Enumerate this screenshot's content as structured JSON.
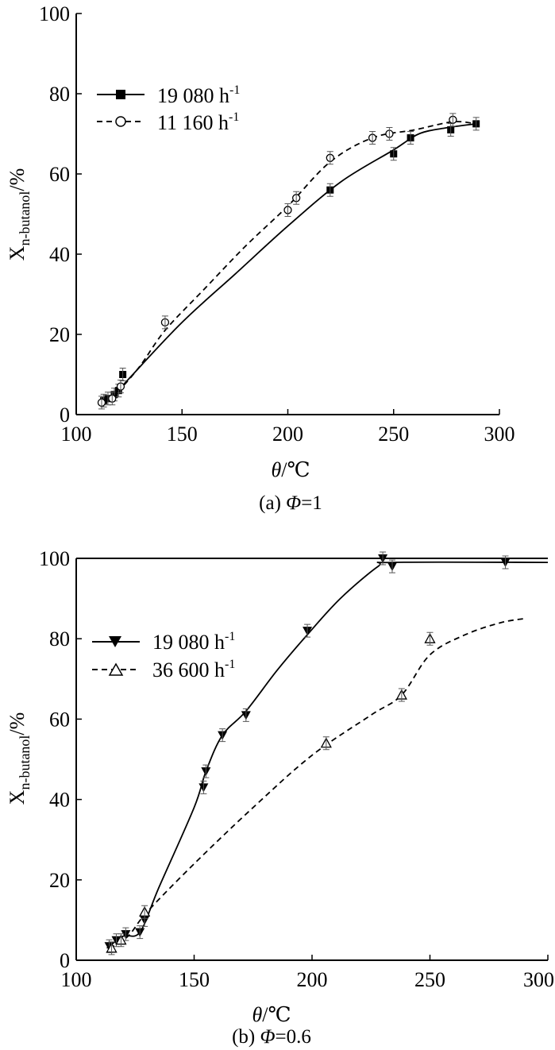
{
  "chart_data": [
    {
      "type": "line",
      "caption": "(a) Φ=1",
      "caption_prefix": "(a) ",
      "caption_symbol": "Φ",
      "caption_value": "=1",
      "xlabel": "θ/℃",
      "xlabel_symbol": "θ",
      "xlabel_unit": "/℃",
      "ylabel": "Xn-butanol/%",
      "ylabel_main": "X",
      "ylabel_sub": "n-butanol",
      "ylabel_unit": "/%",
      "xlim": [
        100,
        300
      ],
      "ylim": [
        0,
        100
      ],
      "xticks": [
        "100",
        "150",
        "200",
        "250",
        "300"
      ],
      "yticks": [
        "0",
        "20",
        "40",
        "60",
        "80",
        "100"
      ],
      "grid": false,
      "legend_position": "top-left",
      "series": [
        {
          "name": "19 080 h-1",
          "name_main": "19 080 h",
          "name_sup": "-1",
          "marker": "filled-square",
          "line": "solid",
          "points": [
            {
              "x": 113,
              "y": 3.5
            },
            {
              "x": 115,
              "y": 4
            },
            {
              "x": 118,
              "y": 5
            },
            {
              "x": 120,
              "y": 6
            },
            {
              "x": 122,
              "y": 10
            },
            {
              "x": 220,
              "y": 56
            },
            {
              "x": 250,
              "y": 65
            },
            {
              "x": 258,
              "y": 69
            },
            {
              "x": 277,
              "y": 71
            },
            {
              "x": 289,
              "y": 72.5
            }
          ],
          "curve": [
            {
              "x": 112,
              "y": 3
            },
            {
              "x": 118,
              "y": 5
            },
            {
              "x": 125,
              "y": 9
            },
            {
              "x": 150,
              "y": 23
            },
            {
              "x": 175,
              "y": 35
            },
            {
              "x": 200,
              "y": 47
            },
            {
              "x": 225,
              "y": 58
            },
            {
              "x": 250,
              "y": 66
            },
            {
              "x": 262,
              "y": 70
            },
            {
              "x": 275,
              "y": 71.5
            },
            {
              "x": 289,
              "y": 72.5
            }
          ]
        },
        {
          "name": "11 160 h-1",
          "name_main": "11 160 h",
          "name_sup": "-1",
          "marker": "open-circle",
          "line": "dashed",
          "points": [
            {
              "x": 112,
              "y": 3
            },
            {
              "x": 117,
              "y": 4
            },
            {
              "x": 121,
              "y": 7
            },
            {
              "x": 142,
              "y": 23
            },
            {
              "x": 200,
              "y": 51
            },
            {
              "x": 204,
              "y": 54
            },
            {
              "x": 220,
              "y": 64
            },
            {
              "x": 240,
              "y": 69
            },
            {
              "x": 248,
              "y": 70
            },
            {
              "x": 278,
              "y": 73.5
            }
          ],
          "curve": [
            {
              "x": 112,
              "y": 3
            },
            {
              "x": 120,
              "y": 6
            },
            {
              "x": 130,
              "y": 12
            },
            {
              "x": 142,
              "y": 21
            },
            {
              "x": 160,
              "y": 31
            },
            {
              "x": 180,
              "y": 42
            },
            {
              "x": 200,
              "y": 52
            },
            {
              "x": 220,
              "y": 63
            },
            {
              "x": 240,
              "y": 69
            },
            {
              "x": 260,
              "y": 71
            },
            {
              "x": 278,
              "y": 73
            },
            {
              "x": 289,
              "y": 72.5
            }
          ]
        }
      ]
    },
    {
      "type": "line",
      "caption": "(b) Φ=0.6",
      "caption_prefix": "(b) ",
      "caption_symbol": "Φ",
      "caption_value": "=0.6",
      "xlabel": "θ/℃",
      "xlabel_symbol": "θ",
      "xlabel_unit": "/℃",
      "ylabel": "Xn-butanol/%",
      "ylabel_main": "X",
      "ylabel_sub": "n-butanol",
      "ylabel_unit": "/%",
      "xlim": [
        100,
        300
      ],
      "ylim": [
        0,
        100
      ],
      "xticks": [
        "100",
        "150",
        "200",
        "250",
        "300"
      ],
      "yticks": [
        "0",
        "20",
        "40",
        "60",
        "80",
        "100"
      ],
      "grid": false,
      "legend_position": "top-left",
      "series": [
        {
          "name": "19 080 h-1",
          "name_main": "19 080 h",
          "name_sup": "-1",
          "marker": "filled-triangle-down",
          "line": "solid",
          "points": [
            {
              "x": 114,
              "y": 3.5
            },
            {
              "x": 117,
              "y": 5
            },
            {
              "x": 121,
              "y": 6.5
            },
            {
              "x": 127,
              "y": 7
            },
            {
              "x": 129,
              "y": 10
            },
            {
              "x": 154,
              "y": 43
            },
            {
              "x": 155,
              "y": 47
            },
            {
              "x": 162,
              "y": 56
            },
            {
              "x": 172,
              "y": 61
            },
            {
              "x": 198,
              "y": 82
            },
            {
              "x": 230,
              "y": 100
            },
            {
              "x": 234,
              "y": 98
            },
            {
              "x": 282,
              "y": 99
            }
          ],
          "curve": [
            {
              "x": 113,
              "y": 3
            },
            {
              "x": 120,
              "y": 6
            },
            {
              "x": 127,
              "y": 7
            },
            {
              "x": 135,
              "y": 18
            },
            {
              "x": 150,
              "y": 38
            },
            {
              "x": 155,
              "y": 47
            },
            {
              "x": 162,
              "y": 56
            },
            {
              "x": 172,
              "y": 62
            },
            {
              "x": 185,
              "y": 72
            },
            {
              "x": 198,
              "y": 81
            },
            {
              "x": 212,
              "y": 90
            },
            {
              "x": 228,
              "y": 98
            },
            {
              "x": 234,
              "y": 99
            },
            {
              "x": 300,
              "y": 99
            }
          ]
        },
        {
          "name": "36 600 h-1",
          "name_main": "36 600 h",
          "name_sup": "-1",
          "marker": "open-triangle-up",
          "line": "dashed",
          "points": [
            {
              "x": 115,
              "y": 3
            },
            {
              "x": 119,
              "y": 5
            },
            {
              "x": 129,
              "y": 12
            },
            {
              "x": 206,
              "y": 54
            },
            {
              "x": 238,
              "y": 66
            },
            {
              "x": 250,
              "y": 80
            }
          ],
          "curve": [
            {
              "x": 114,
              "y": 3
            },
            {
              "x": 122,
              "y": 6
            },
            {
              "x": 130,
              "y": 12
            },
            {
              "x": 150,
              "y": 24
            },
            {
              "x": 175,
              "y": 38
            },
            {
              "x": 200,
              "y": 51
            },
            {
              "x": 225,
              "y": 61
            },
            {
              "x": 238,
              "y": 66
            },
            {
              "x": 250,
              "y": 76
            },
            {
              "x": 265,
              "y": 81
            },
            {
              "x": 280,
              "y": 84
            },
            {
              "x": 290,
              "y": 85
            }
          ]
        }
      ]
    }
  ]
}
